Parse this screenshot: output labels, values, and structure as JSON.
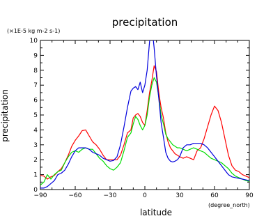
{
  "chart_data": {
    "type": "line",
    "title": "precipitation",
    "ylabel": "precipitation",
    "xlabel": "latitude",
    "units": "(×1E-5 kg m-2 s-1)",
    "x_units": "(degree_north)",
    "xlim": [
      -90,
      90
    ],
    "ylim": [
      0,
      10
    ],
    "xticks": [
      -90,
      -60,
      -30,
      0,
      30,
      60,
      90
    ],
    "xtick_labels": [
      "−90",
      "−60",
      "−30",
      "0",
      "30",
      "60",
      "90"
    ],
    "yticks": [
      0,
      1,
      2,
      3,
      4,
      5,
      6,
      7,
      8,
      9,
      10
    ],
    "grid": false,
    "legend": "none",
    "series": [
      {
        "color": "#ff0000",
        "points": [
          [
            -90,
            0.95
          ],
          [
            -87,
            0.9
          ],
          [
            -84,
            0.7
          ],
          [
            -81,
            0.85
          ],
          [
            -78,
            0.95
          ],
          [
            -75,
            1.2
          ],
          [
            -72,
            1.4
          ],
          [
            -69,
            1.8
          ],
          [
            -66,
            2.3
          ],
          [
            -63,
            2.9
          ],
          [
            -60,
            3.3
          ],
          [
            -57,
            3.6
          ],
          [
            -54,
            3.95
          ],
          [
            -51,
            4.0
          ],
          [
            -48,
            3.6
          ],
          [
            -45,
            3.2
          ],
          [
            -42,
            3.0
          ],
          [
            -39,
            2.7
          ],
          [
            -36,
            2.3
          ],
          [
            -33,
            2.0
          ],
          [
            -30,
            2.0
          ],
          [
            -27,
            2.0
          ],
          [
            -24,
            2.0
          ],
          [
            -21,
            2.3
          ],
          [
            -18,
            3.0
          ],
          [
            -15,
            3.8
          ],
          [
            -12,
            4.0
          ],
          [
            -10,
            4.8
          ],
          [
            -8,
            5.0
          ],
          [
            -6,
            5.1
          ],
          [
            -4,
            4.9
          ],
          [
            -2,
            4.5
          ],
          [
            0,
            4.3
          ],
          [
            2,
            5.3
          ],
          [
            4,
            6.5
          ],
          [
            6,
            7.3
          ],
          [
            8,
            8.3
          ],
          [
            10,
            7.9
          ],
          [
            12,
            6.5
          ],
          [
            14,
            5.5
          ],
          [
            16,
            4.8
          ],
          [
            18,
            3.8
          ],
          [
            20,
            3.2
          ],
          [
            22,
            2.8
          ],
          [
            24,
            2.6
          ],
          [
            26,
            2.4
          ],
          [
            28,
            2.3
          ],
          [
            30,
            2.2
          ],
          [
            33,
            2.1
          ],
          [
            36,
            2.2
          ],
          [
            39,
            2.1
          ],
          [
            42,
            2.0
          ],
          [
            45,
            2.6
          ],
          [
            48,
            2.8
          ],
          [
            51,
            3.4
          ],
          [
            54,
            4.2
          ],
          [
            57,
            5.0
          ],
          [
            60,
            5.6
          ],
          [
            63,
            5.3
          ],
          [
            66,
            4.5
          ],
          [
            69,
            3.4
          ],
          [
            72,
            2.3
          ],
          [
            75,
            1.6
          ],
          [
            78,
            1.3
          ],
          [
            81,
            1.2
          ],
          [
            84,
            1.0
          ],
          [
            87,
            0.9
          ],
          [
            90,
            0.8
          ]
        ]
      },
      {
        "color": "#00dd00",
        "points": [
          [
            -90,
            0.3
          ],
          [
            -87,
            0.5
          ],
          [
            -84,
            1.0
          ],
          [
            -81,
            0.7
          ],
          [
            -78,
            1.0
          ],
          [
            -75,
            1.2
          ],
          [
            -72,
            1.3
          ],
          [
            -69,
            1.8
          ],
          [
            -66,
            2.2
          ],
          [
            -63,
            2.5
          ],
          [
            -60,
            2.6
          ],
          [
            -57,
            2.5
          ],
          [
            -54,
            2.7
          ],
          [
            -51,
            2.8
          ],
          [
            -48,
            2.7
          ],
          [
            -45,
            2.7
          ],
          [
            -42,
            2.4
          ],
          [
            -39,
            2.1
          ],
          [
            -36,
            1.9
          ],
          [
            -33,
            1.6
          ],
          [
            -30,
            1.4
          ],
          [
            -27,
            1.3
          ],
          [
            -24,
            1.5
          ],
          [
            -21,
            1.8
          ],
          [
            -18,
            2.6
          ],
          [
            -15,
            3.5
          ],
          [
            -12,
            3.8
          ],
          [
            -10,
            4.4
          ],
          [
            -8,
            4.9
          ],
          [
            -6,
            4.7
          ],
          [
            -4,
            4.3
          ],
          [
            -2,
            4.0
          ],
          [
            0,
            4.3
          ],
          [
            2,
            5.0
          ],
          [
            4,
            6.2
          ],
          [
            6,
            7.0
          ],
          [
            8,
            7.5
          ],
          [
            10,
            7.2
          ],
          [
            12,
            6.2
          ],
          [
            14,
            5.0
          ],
          [
            16,
            4.4
          ],
          [
            18,
            3.7
          ],
          [
            20,
            3.4
          ],
          [
            22,
            3.2
          ],
          [
            24,
            3.0
          ],
          [
            26,
            2.9
          ],
          [
            28,
            2.8
          ],
          [
            30,
            2.8
          ],
          [
            33,
            2.7
          ],
          [
            36,
            2.6
          ],
          [
            39,
            2.7
          ],
          [
            42,
            2.8
          ],
          [
            45,
            2.7
          ],
          [
            48,
            2.6
          ],
          [
            51,
            2.5
          ],
          [
            54,
            2.3
          ],
          [
            57,
            2.1
          ],
          [
            60,
            2.0
          ],
          [
            63,
            1.9
          ],
          [
            66,
            1.8
          ],
          [
            69,
            1.6
          ],
          [
            72,
            1.4
          ],
          [
            75,
            1.1
          ],
          [
            78,
            0.9
          ],
          [
            81,
            0.8
          ],
          [
            84,
            0.7
          ],
          [
            87,
            0.6
          ],
          [
            90,
            0.55
          ]
        ]
      },
      {
        "color": "#0000dd",
        "points": [
          [
            -90,
            0.1
          ],
          [
            -87,
            0.1
          ],
          [
            -84,
            0.2
          ],
          [
            -81,
            0.4
          ],
          [
            -78,
            0.6
          ],
          [
            -75,
            1.0
          ],
          [
            -72,
            1.1
          ],
          [
            -69,
            1.3
          ],
          [
            -66,
            1.7
          ],
          [
            -63,
            2.2
          ],
          [
            -60,
            2.6
          ],
          [
            -57,
            2.8
          ],
          [
            -54,
            2.8
          ],
          [
            -51,
            2.8
          ],
          [
            -48,
            2.7
          ],
          [
            -45,
            2.5
          ],
          [
            -42,
            2.4
          ],
          [
            -39,
            2.3
          ],
          [
            -36,
            2.1
          ],
          [
            -33,
            2.0
          ],
          [
            -30,
            1.9
          ],
          [
            -27,
            1.95
          ],
          [
            -24,
            2.2
          ],
          [
            -21,
            3.0
          ],
          [
            -18,
            4.2
          ],
          [
            -15,
            5.5
          ],
          [
            -12,
            6.6
          ],
          [
            -10,
            6.8
          ],
          [
            -8,
            6.9
          ],
          [
            -6,
            6.7
          ],
          [
            -4,
            7.2
          ],
          [
            -2,
            6.5
          ],
          [
            0,
            7.0
          ],
          [
            2,
            8.0
          ],
          [
            4,
            9.9
          ],
          [
            6,
            11.0
          ],
          [
            8,
            9.5
          ],
          [
            10,
            7.6
          ],
          [
            12,
            6.1
          ],
          [
            14,
            4.5
          ],
          [
            16,
            3.5
          ],
          [
            18,
            2.5
          ],
          [
            20,
            2.1
          ],
          [
            22,
            1.9
          ],
          [
            24,
            1.85
          ],
          [
            26,
            1.9
          ],
          [
            28,
            2.0
          ],
          [
            30,
            2.2
          ],
          [
            33,
            2.8
          ],
          [
            36,
            3.0
          ],
          [
            39,
            3.0
          ],
          [
            42,
            3.1
          ],
          [
            45,
            3.1
          ],
          [
            48,
            3.1
          ],
          [
            51,
            3.0
          ],
          [
            54,
            2.8
          ],
          [
            57,
            2.5
          ],
          [
            60,
            2.2
          ],
          [
            63,
            1.9
          ],
          [
            66,
            1.6
          ],
          [
            69,
            1.3
          ],
          [
            72,
            1.0
          ],
          [
            75,
            0.85
          ],
          [
            78,
            0.8
          ],
          [
            81,
            0.75
          ],
          [
            84,
            0.7
          ],
          [
            87,
            0.65
          ],
          [
            90,
            0.6
          ]
        ]
      }
    ]
  }
}
